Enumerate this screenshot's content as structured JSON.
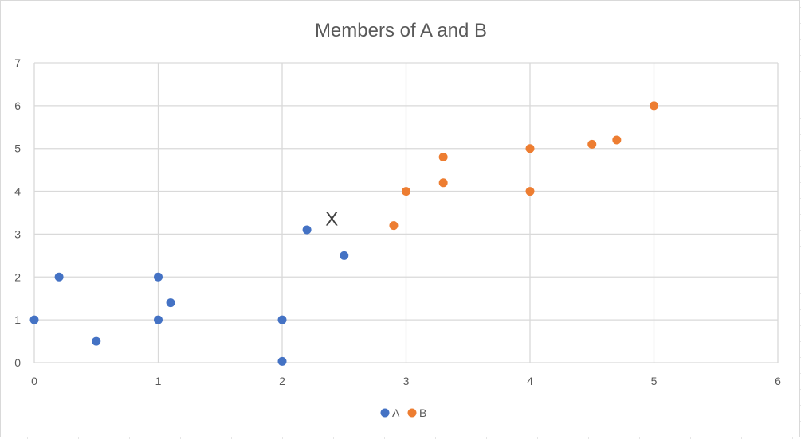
{
  "chart_data": {
    "type": "scatter",
    "title": "Members of A and B",
    "xlabel": "",
    "ylabel": "",
    "xlim": [
      0,
      6
    ],
    "ylim": [
      0,
      7
    ],
    "x_ticks": [
      0,
      1,
      2,
      3,
      4,
      5,
      6
    ],
    "y_ticks": [
      0,
      1,
      2,
      3,
      4,
      5,
      6,
      7
    ],
    "grid": true,
    "legend_position": "bottom",
    "series": [
      {
        "name": "A",
        "color": "#4472c4",
        "points": [
          [
            0,
            1
          ],
          [
            0.2,
            2
          ],
          [
            0.5,
            0.5
          ],
          [
            1,
            2
          ],
          [
            1,
            1
          ],
          [
            1.1,
            1.4
          ],
          [
            2,
            1
          ],
          [
            2,
            0.03
          ],
          [
            2.2,
            3.1
          ],
          [
            2.5,
            2.5
          ]
        ]
      },
      {
        "name": "B",
        "color": "#ed7d31",
        "points": [
          [
            2.9,
            3.2
          ],
          [
            3,
            4
          ],
          [
            3.3,
            4.8
          ],
          [
            3.3,
            4.2
          ],
          [
            4,
            5
          ],
          [
            4,
            4
          ],
          [
            4.5,
            5.1
          ],
          [
            4.7,
            5.2
          ],
          [
            5,
            6
          ]
        ]
      }
    ],
    "annotations": [
      {
        "text": "X",
        "x": 2.4,
        "y": 3.35
      }
    ]
  }
}
